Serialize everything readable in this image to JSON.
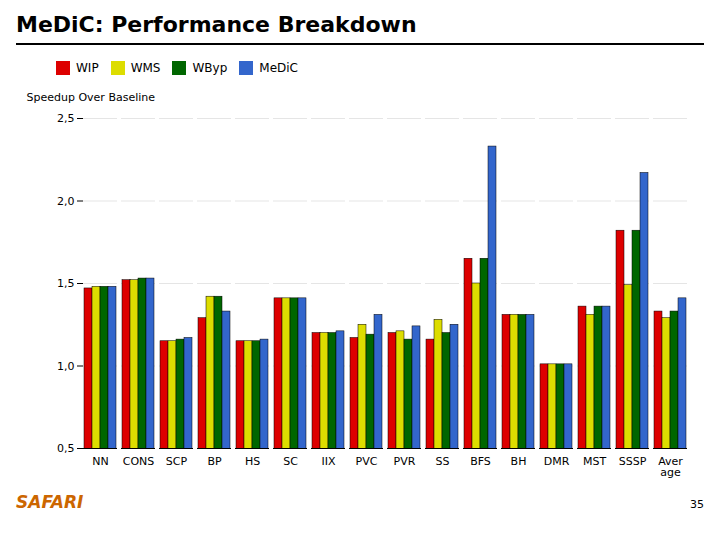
{
  "chart_data": {
    "type": "bar",
    "title": "MeDiC: Performance Breakdown",
    "ylabel": "Speedup Over Baseline",
    "categories": [
      "NN",
      "CONS",
      "SCP",
      "BP",
      "HS",
      "SC",
      "IIX",
      "PVC",
      "PVR",
      "SS",
      "BFS",
      "BH",
      "DMR",
      "MST",
      "SSSP",
      "Aver\nage"
    ],
    "series": [
      {
        "name": "WIP",
        "color": "#dd0000",
        "values": [
          1.47,
          1.52,
          1.15,
          1.29,
          1.15,
          1.41,
          1.2,
          1.17,
          1.2,
          1.16,
          1.65,
          1.31,
          1.01,
          1.36,
          1.82,
          1.33
        ]
      },
      {
        "name": "WMS",
        "color": "#dddd00",
        "values": [
          1.48,
          1.52,
          1.15,
          1.42,
          1.15,
          1.41,
          1.2,
          1.25,
          1.21,
          1.28,
          1.5,
          1.31,
          1.01,
          1.31,
          1.49,
          1.29
        ]
      },
      {
        "name": "WByp",
        "color": "#006600",
        "values": [
          1.48,
          1.53,
          1.16,
          1.42,
          1.15,
          1.41,
          1.2,
          1.19,
          1.16,
          1.2,
          1.65,
          1.31,
          1.01,
          1.36,
          1.82,
          1.33
        ]
      },
      {
        "name": "MeDiC",
        "color": "#3366cc",
        "values": [
          1.48,
          1.53,
          1.17,
          1.33,
          1.16,
          1.41,
          1.21,
          1.31,
          1.24,
          1.25,
          2.33,
          1.31,
          1.01,
          1.36,
          2.17,
          1.41
        ]
      }
    ],
    "ylim": [
      0.5,
      2.5
    ],
    "yticks": [
      {
        "value": 0.5,
        "label": "0,5"
      },
      {
        "value": 1.0,
        "label": "1,0"
      },
      {
        "value": 1.5,
        "label": "1,5"
      },
      {
        "value": 2.0,
        "label": "2,0"
      },
      {
        "value": 2.5,
        "label": "2,5"
      }
    ],
    "grid": true,
    "legend": "top-left",
    "annotations": [
      {
        "text": "SAFARI",
        "color": "#cc6600"
      },
      {
        "text": "35"
      }
    ]
  }
}
